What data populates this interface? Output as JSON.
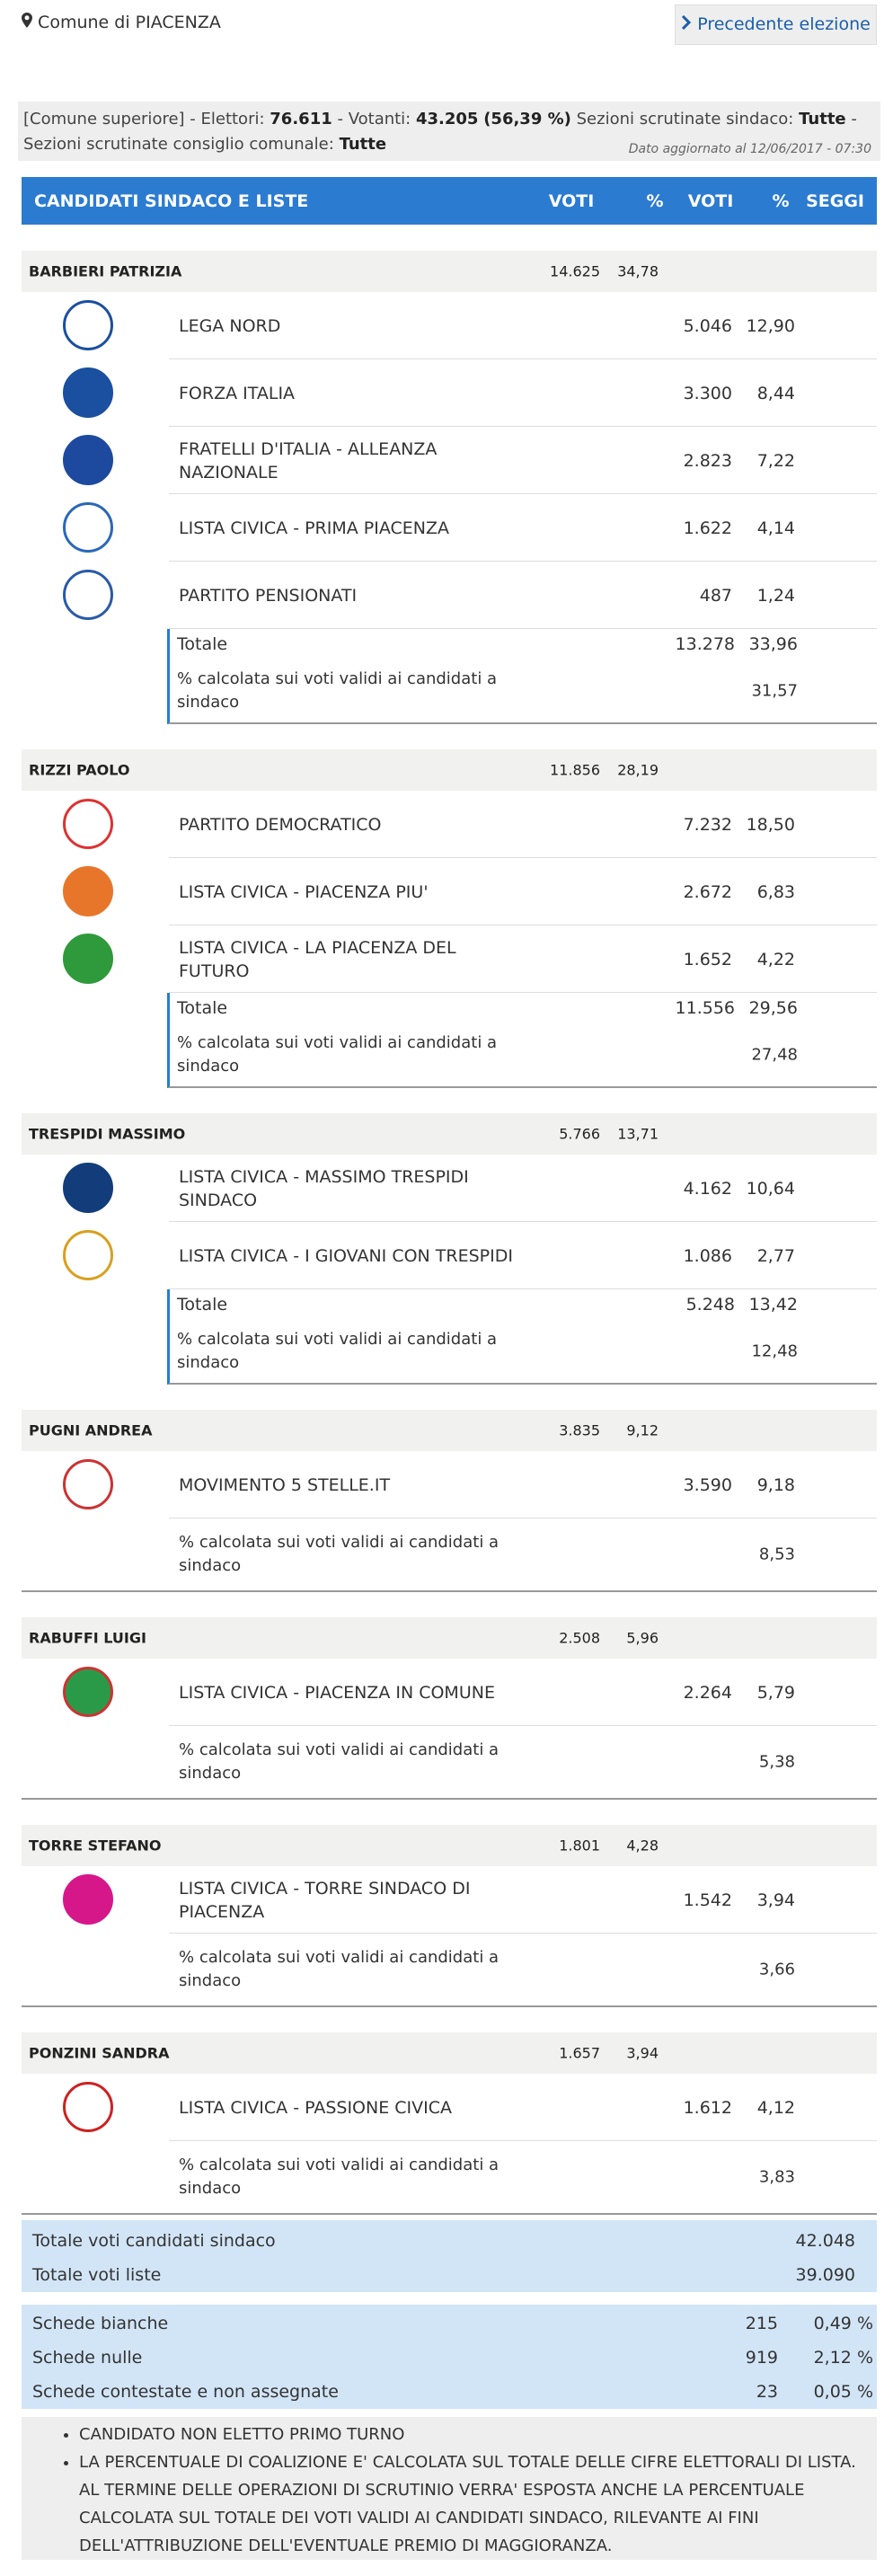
{
  "header": {
    "location": "Comune di PIACENZA",
    "previous_button": "Precedente elezione"
  },
  "summary": {
    "prefix": "[Comune superiore] - Elettori:",
    "elettori": "76.611",
    "votanti_label": "- Votanti:",
    "votanti": "43.205",
    "votanti_pct": "(56,39 %)",
    "sezioni_sindaco_label": "Sezioni scrutinate sindaco:",
    "sezioni_sindaco": "Tutte",
    "sezioni_consiglio_label": "- Sezioni scrutinate consiglio comunale:",
    "sezioni_consiglio": "Tutte",
    "updated": "Dato aggiornato al 12/06/2017 - 07:30"
  },
  "table": {
    "headers": [
      "CANDIDATI SINDACO E LISTE",
      "VOTI",
      "%",
      "VOTI",
      "%",
      "SEGGI"
    ],
    "candidates": [
      {
        "name": "BARBIERI PATRIZIA",
        "votes": "14.625",
        "pct": "34,78",
        "lists": [
          {
            "name": "LEGA NORD",
            "votes": "5.046",
            "pct": "12,90"
          },
          {
            "name": "FORZA ITALIA",
            "votes": "3.300",
            "pct": "8,44"
          },
          {
            "name": "FRATELLI D'ITALIA - ALLEANZA NAZIONALE",
            "votes": "2.823",
            "pct": "7,22"
          },
          {
            "name": "LISTA CIVICA - PRIMA PIACENZA",
            "votes": "1.622",
            "pct": "4,14"
          },
          {
            "name": "PARTITO PENSIONATI",
            "votes": "487",
            "pct": "1,24"
          }
        ],
        "total": {
          "label": "Totale",
          "votes": "13.278",
          "pct": "33,96"
        },
        "note": {
          "label": "% calcolata sui voti validi ai candidati a sindaco",
          "pct": "31,57"
        }
      },
      {
        "name": "RIZZI PAOLO",
        "votes": "11.856",
        "pct": "28,19",
        "lists": [
          {
            "name": "PARTITO DEMOCRATICO",
            "votes": "7.232",
            "pct": "18,50"
          },
          {
            "name": "LISTA CIVICA - PIACENZA PIU'",
            "votes": "2.672",
            "pct": "6,83"
          },
          {
            "name": "LISTA CIVICA - LA PIACENZA DEL FUTURO",
            "votes": "1.652",
            "pct": "4,22"
          }
        ],
        "total": {
          "label": "Totale",
          "votes": "11.556",
          "pct": "29,56"
        },
        "note": {
          "label": "% calcolata sui voti validi ai candidati a sindaco",
          "pct": "27,48"
        }
      },
      {
        "name": "TRESPIDI MASSIMO",
        "votes": "5.766",
        "pct": "13,71",
        "lists": [
          {
            "name": "LISTA CIVICA - MASSIMO TRESPIDI SINDACO",
            "votes": "4.162",
            "pct": "10,64"
          },
          {
            "name": "LISTA CIVICA - I GIOVANI CON TRESPIDI",
            "votes": "1.086",
            "pct": "2,77"
          }
        ],
        "total": {
          "label": "Totale",
          "votes": "5.248",
          "pct": "13,42"
        },
        "note": {
          "label": "% calcolata sui voti validi ai candidati a sindaco",
          "pct": "12,48"
        }
      },
      {
        "name": "PUGNI ANDREA",
        "votes": "3.835",
        "pct": "9,12",
        "lists": [
          {
            "name": "MOVIMENTO 5 STELLE.IT",
            "votes": "3.590",
            "pct": "9,18"
          }
        ],
        "note": {
          "label": "% calcolata sui voti validi ai candidati a sindaco",
          "pct": "8,53"
        }
      },
      {
        "name": "RABUFFI LUIGI",
        "votes": "2.508",
        "pct": "5,96",
        "lists": [
          {
            "name": "LISTA CIVICA - PIACENZA IN COMUNE",
            "votes": "2.264",
            "pct": "5,79"
          }
        ],
        "note": {
          "label": "% calcolata sui voti validi ai candidati a sindaco",
          "pct": "5,38"
        }
      },
      {
        "name": "TORRE STEFANO",
        "votes": "1.801",
        "pct": "4,28",
        "lists": [
          {
            "name": "LISTA CIVICA - TORRE SINDACO DI PIACENZA",
            "votes": "1.542",
            "pct": "3,94"
          }
        ],
        "note": {
          "label": "% calcolata sui voti validi ai candidati a sindaco",
          "pct": "3,66"
        }
      },
      {
        "name": "PONZINI SANDRA",
        "votes": "1.657",
        "pct": "3,94",
        "lists": [
          {
            "name": "LISTA CIVICA - PASSIONE CIVICA",
            "votes": "1.612",
            "pct": "4,12"
          }
        ],
        "note": {
          "label": "% calcolata sui voti validi ai candidati a sindaco",
          "pct": "3,83"
        }
      }
    ]
  },
  "totals": [
    {
      "label": "Totale voti candidati sindaco",
      "value": "42.048"
    },
    {
      "label": "Totale voti liste",
      "value": "39.090"
    }
  ],
  "ballots": [
    {
      "label": "Schede bianche",
      "value": "215",
      "pct": "0,49 %"
    },
    {
      "label": "Schede nulle",
      "value": "919",
      "pct": "2,12 %"
    },
    {
      "label": "Schede contestate e non assegnate",
      "value": "23",
      "pct": "0,05 %"
    }
  ],
  "notes": [
    "CANDIDATO NON ELETTO PRIMO TURNO",
    "LA PERCENTUALE DI COALIZIONE E' CALCOLATA SUL TOTALE DELLE CIFRE ELETTORALI DI LISTA. AL TERMINE DELLE OPERAZIONI DI SCRUTINIO VERRA' ESPOSTA ANCHE LA PERCENTUALE CALCOLATA SUL TOTALE DEI VOTI VALIDI AI CANDIDATI SINDACO, RILEVANTE AI FINI DELL'ATTRIBUZIONE DELL'EVENTUALE PREMIO DI MAGGIORANZA."
  ]
}
